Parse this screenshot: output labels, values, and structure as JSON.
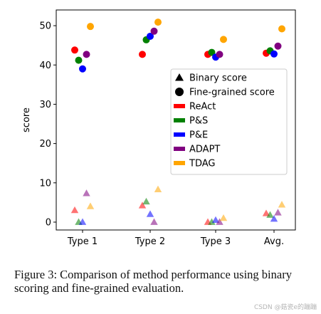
{
  "chart_data": {
    "type": "scatter",
    "categories": [
      "Type 1",
      "Type 2",
      "Type 3",
      "Avg."
    ],
    "ylabel": "score",
    "xlabel": "",
    "ylim": [
      -2,
      54
    ],
    "yticks": [
      0,
      10,
      20,
      30,
      40,
      50
    ],
    "grid": false,
    "legend_position": "center-right",
    "marker_legend": [
      {
        "label": "Binary score",
        "marker": "triangle"
      },
      {
        "label": "Fine-grained score",
        "marker": "circle"
      }
    ],
    "series": [
      {
        "name": "ReAct",
        "color": "#ff0000",
        "binary": [
          3.0,
          4.2,
          0.0,
          2.2
        ],
        "fine_grained": [
          43.8,
          42.7,
          42.7,
          43.0
        ]
      },
      {
        "name": "P&S",
        "color": "#008000",
        "binary": [
          0.0,
          5.2,
          0.0,
          1.8
        ],
        "fine_grained": [
          41.2,
          46.4,
          43.2,
          43.6
        ]
      },
      {
        "name": "P&E",
        "color": "#0000ff",
        "binary": [
          0.0,
          2.0,
          0.5,
          0.8
        ],
        "fine_grained": [
          39.0,
          47.3,
          42.0,
          42.8
        ]
      },
      {
        "name": "ADAPT",
        "color": "#800080",
        "binary": [
          7.3,
          0.0,
          0.0,
          2.4
        ],
        "fine_grained": [
          42.7,
          48.6,
          42.7,
          44.8
        ]
      },
      {
        "name": "TDAG",
        "color": "#ffa500",
        "binary": [
          4.0,
          8.3,
          1.0,
          4.4
        ],
        "fine_grained": [
          49.8,
          50.9,
          46.5,
          49.2
        ]
      }
    ]
  },
  "caption": "Figure 3: Comparison of method performance using binary scoring and fine-grained evaluation.",
  "watermark": "CSDN @菇瓷e的蹦蹦"
}
